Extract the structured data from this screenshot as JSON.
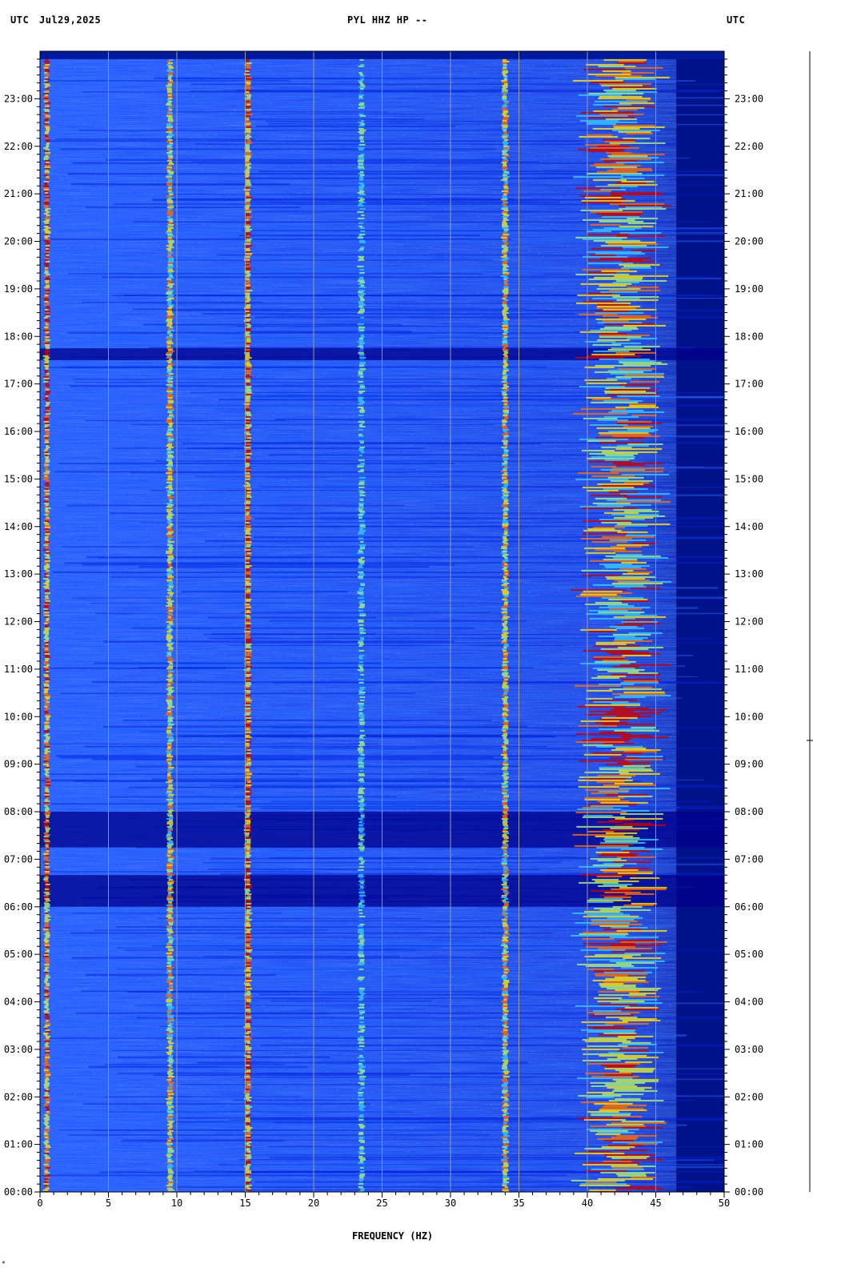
{
  "header": {
    "utc_left": "UTC",
    "date": "Jul29,2025",
    "station": "PYL HHZ HP --",
    "utc_right": "UTC"
  },
  "footer": {
    "xlabel": "FREQUENCY (HZ)",
    "corner_mark": "*"
  },
  "chart_data": {
    "type": "heatmap",
    "title": "PYL HHZ HP --",
    "date": "Jul29,2025",
    "xlabel": "FREQUENCY (HZ)",
    "ylabel": "UTC",
    "xlim": [
      0,
      50
    ],
    "ylim": [
      "00:00",
      "24:00"
    ],
    "x_major_ticks": [
      0,
      5,
      10,
      15,
      20,
      25,
      30,
      35,
      40,
      45,
      50
    ],
    "x_minor_step": 1,
    "y_tick_labels": [
      "00:00",
      "01:00",
      "02:00",
      "03:00",
      "04:00",
      "05:00",
      "06:00",
      "07:00",
      "08:00",
      "09:00",
      "10:00",
      "11:00",
      "12:00",
      "13:00",
      "14:00",
      "15:00",
      "16:00",
      "17:00",
      "18:00",
      "19:00",
      "20:00",
      "21:00",
      "22:00",
      "23:00"
    ],
    "y_minor_step_minutes": 10,
    "grid": "vertical lines every 5 Hz",
    "colormap": [
      "#00008b",
      "#0022dd",
      "#1e63ff",
      "#37c8ff",
      "#a8f07a",
      "#ffe200",
      "#ff6a00",
      "#cc0000"
    ],
    "colors": {
      "background": "#001a9e",
      "dead_band": "#00128a",
      "grid": "#9a9a9a"
    },
    "data_end_utc": "23:50",
    "upper_rolloff_hz": 46.5,
    "persistent_lines_hz": [
      {
        "hz": 0.5,
        "intensity": "high"
      },
      {
        "hz": 9.5,
        "intensity": "medium"
      },
      {
        "hz": 15.2,
        "intensity": "high"
      },
      {
        "hz": 23.5,
        "intensity": "low"
      },
      {
        "hz": 34,
        "intensity": "medium"
      },
      {
        "hz": 42.5,
        "intensity": "medium-high, broadband 40-46"
      }
    ],
    "quiet_bands_utc": [
      "07:15-08:00",
      "17:30-17:45",
      "06:00-06:40"
    ]
  }
}
